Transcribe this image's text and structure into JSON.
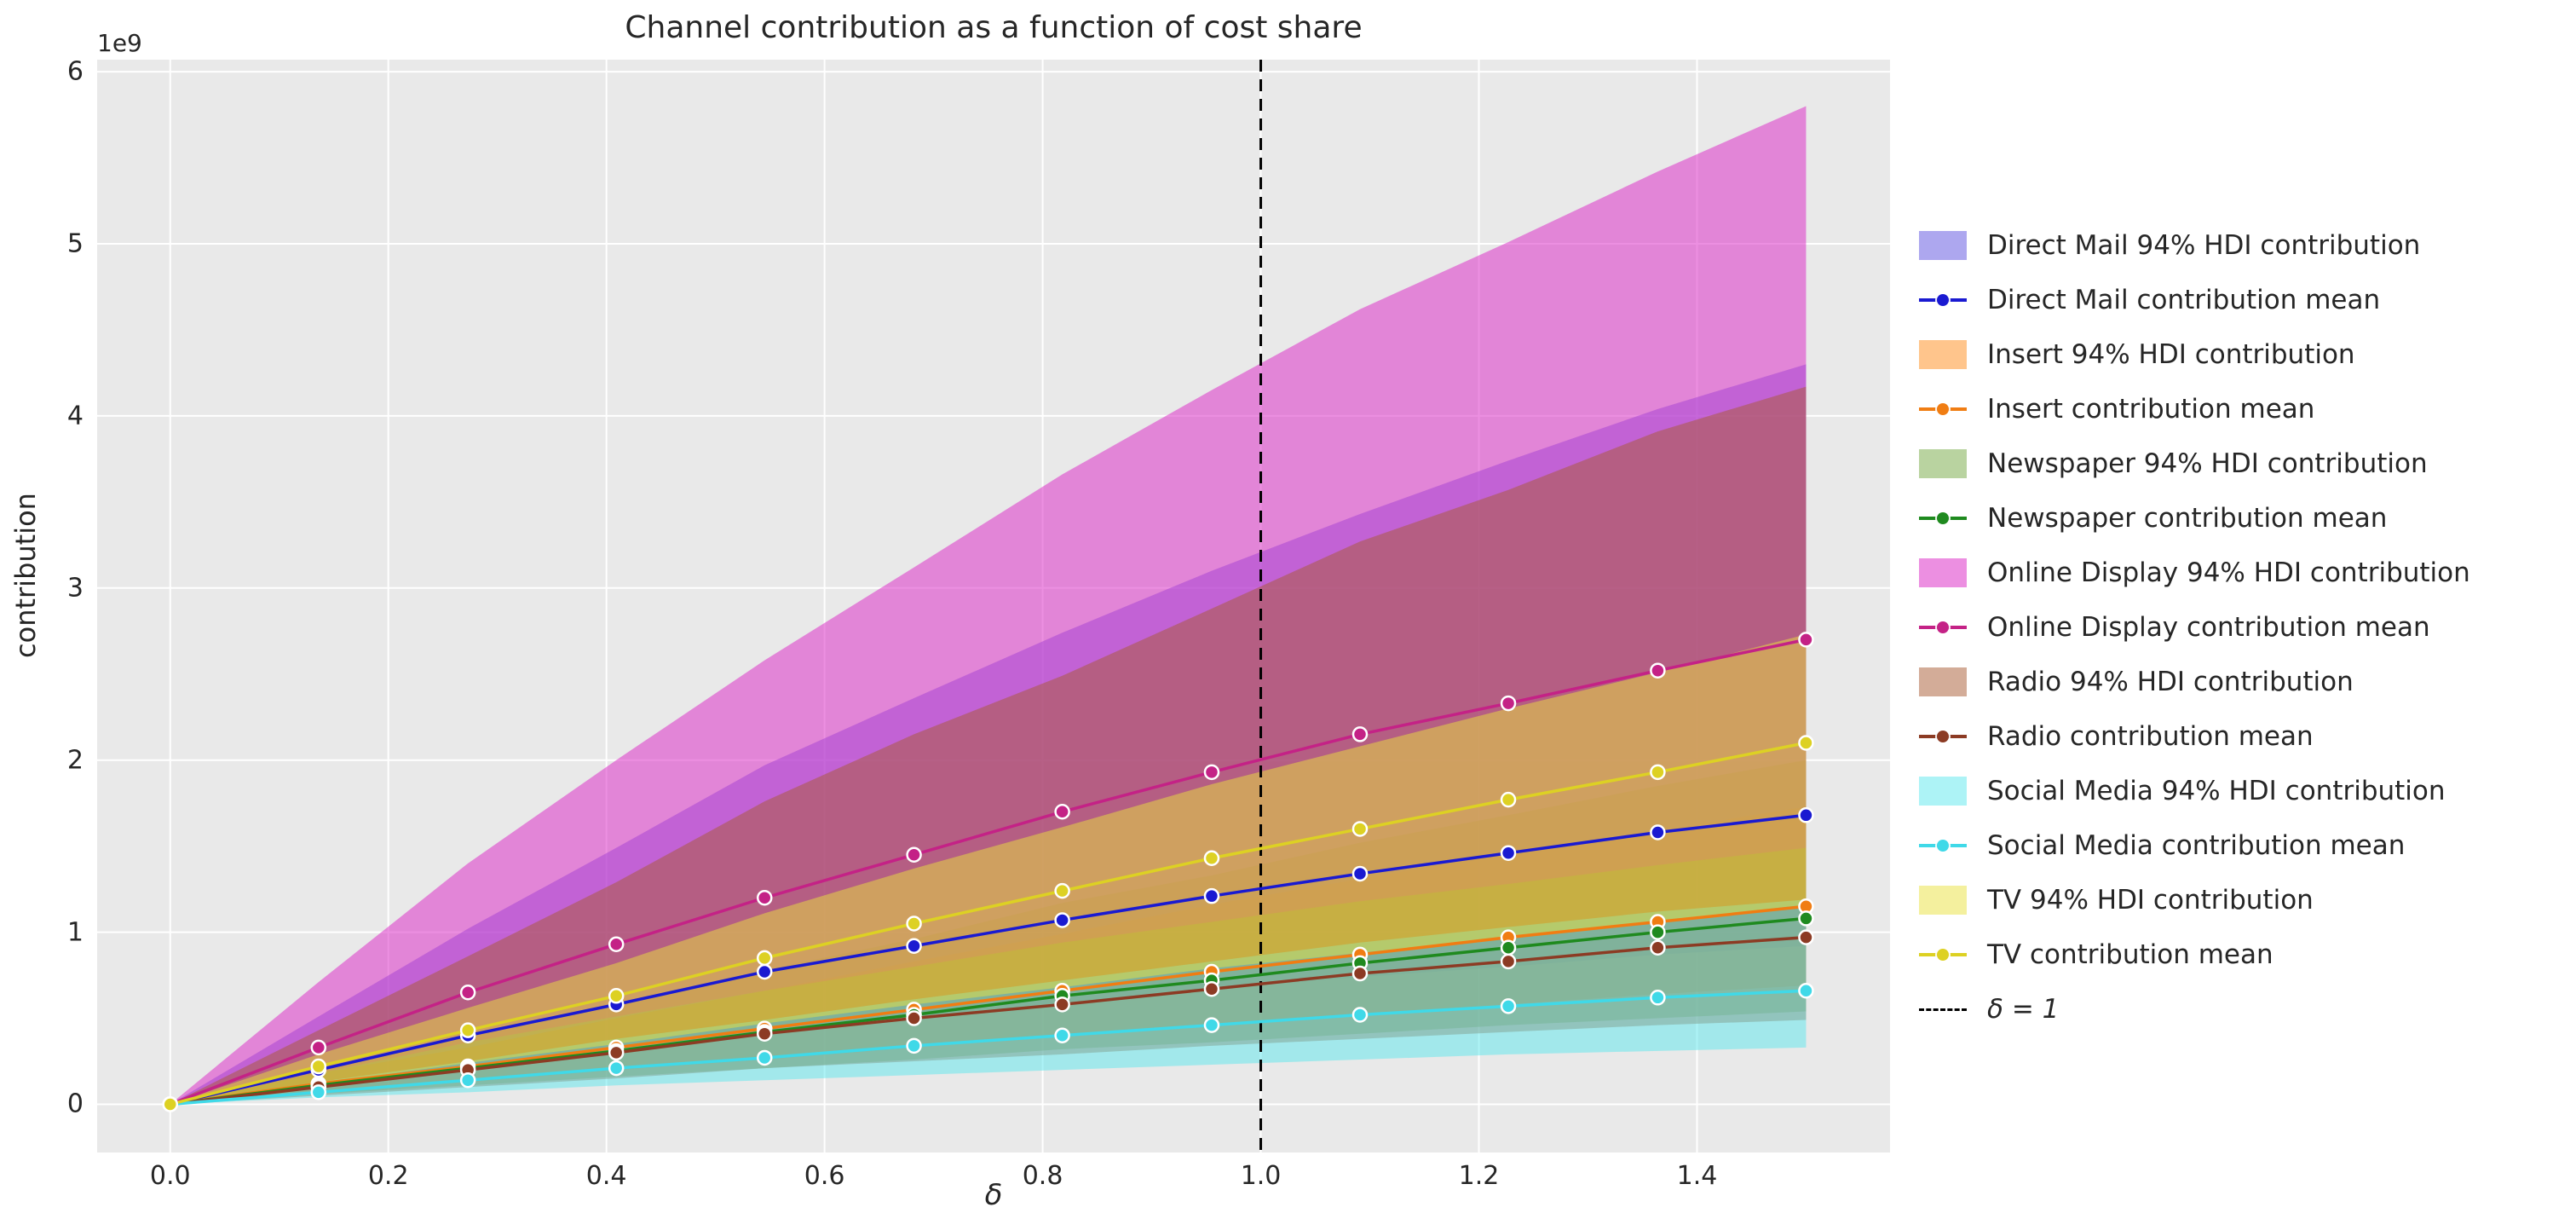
{
  "chart_data": {
    "type": "area",
    "title": "Channel contribution as a function of cost share",
    "xlabel": "δ",
    "ylabel": "contribution",
    "y_offset_text": "1e9",
    "y_unit_multiplier": 1000000000,
    "grid": true,
    "legend_position": "right-outside",
    "plot_bg_color": "#e9e9e9",
    "grid_color": "#ffffff",
    "xlim": [
      -0.067,
      1.577
    ],
    "ylim": [
      -0.28,
      6.07
    ],
    "x_ticks": [
      0.0,
      0.2,
      0.4,
      0.6,
      0.8,
      1.0,
      1.2,
      1.4
    ],
    "x_tick_labels": [
      "0.0",
      "0.2",
      "0.4",
      "0.6",
      "0.8",
      "1.0",
      "1.2",
      "1.4"
    ],
    "y_ticks": [
      0,
      1,
      2,
      3,
      4,
      5,
      6
    ],
    "y_tick_labels": [
      "0",
      "1",
      "2",
      "3",
      "4",
      "5",
      "6"
    ],
    "x": [
      0.0,
      0.136,
      0.273,
      0.409,
      0.545,
      0.682,
      0.818,
      0.955,
      1.091,
      1.227,
      1.364,
      1.5
    ],
    "series": [
      {
        "name": "Direct Mail",
        "line_color": "#1a1ad1",
        "band_color": "#5b4fe0",
        "band_alpha": 0.5,
        "mean": [
          0,
          0.2,
          0.4,
          0.58,
          0.77,
          0.92,
          1.07,
          1.21,
          1.34,
          1.46,
          1.58,
          1.68
        ],
        "hdi_lower": [
          0,
          0.11,
          0.22,
          0.32,
          0.42,
          0.51,
          0.59,
          0.67,
          0.74,
          0.8,
          0.87,
          0.92
        ],
        "hdi_upper": [
          0,
          0.51,
          1.02,
          1.49,
          1.97,
          2.36,
          2.74,
          3.1,
          3.43,
          3.74,
          4.04,
          4.3
        ]
      },
      {
        "name": "Insert",
        "line_color": "#f07d13",
        "band_color": "#ff8c1a",
        "band_alpha": 0.5,
        "mean": [
          0,
          0.12,
          0.22,
          0.33,
          0.44,
          0.55,
          0.66,
          0.77,
          0.87,
          0.97,
          1.06,
          1.15
        ],
        "hdi_lower": [
          0,
          0.07,
          0.13,
          0.2,
          0.26,
          0.33,
          0.4,
          0.46,
          0.52,
          0.58,
          0.64,
          0.69
        ],
        "hdi_upper": [
          0,
          0.18,
          0.33,
          0.5,
          0.66,
          0.83,
          0.99,
          1.16,
          1.31,
          1.46,
          1.59,
          1.73
        ]
      },
      {
        "name": "Newspaper",
        "line_color": "#1f8a1f",
        "band_color": "#74a842",
        "band_alpha": 0.5,
        "mean": [
          0,
          0.11,
          0.21,
          0.31,
          0.42,
          0.52,
          0.63,
          0.72,
          0.82,
          0.91,
          1.0,
          1.08
        ],
        "hdi_lower": [
          0,
          0.06,
          0.11,
          0.16,
          0.21,
          0.26,
          0.32,
          0.36,
          0.41,
          0.46,
          0.5,
          0.54
        ],
        "hdi_upper": [
          0,
          0.2,
          0.39,
          0.57,
          0.78,
          0.96,
          1.17,
          1.33,
          1.52,
          1.68,
          1.85,
          2.0
        ]
      },
      {
        "name": "Online Display",
        "line_color": "#c42286",
        "band_color": "#dd33c8",
        "band_alpha": 0.55,
        "mean": [
          0,
          0.33,
          0.65,
          0.93,
          1.2,
          1.45,
          1.7,
          1.93,
          2.15,
          2.33,
          2.52,
          2.7
        ],
        "hdi_lower": [
          0,
          0.18,
          0.36,
          0.51,
          0.66,
          0.8,
          0.94,
          1.06,
          1.18,
          1.28,
          1.39,
          1.49
        ],
        "hdi_upper": [
          0,
          0.71,
          1.4,
          2.0,
          2.58,
          3.12,
          3.66,
          4.15,
          4.62,
          5.01,
          5.42,
          5.8
        ]
      },
      {
        "name": "Radio",
        "line_color": "#8c3b24",
        "band_color": "#a85a32",
        "band_alpha": 0.5,
        "mean": [
          0,
          0.1,
          0.2,
          0.3,
          0.41,
          0.5,
          0.58,
          0.67,
          0.76,
          0.83,
          0.91,
          0.97
        ],
        "hdi_lower": [
          0,
          0.05,
          0.1,
          0.15,
          0.21,
          0.25,
          0.29,
          0.34,
          0.38,
          0.42,
          0.46,
          0.49
        ],
        "hdi_upper": [
          0,
          0.43,
          0.86,
          1.29,
          1.76,
          2.15,
          2.49,
          2.88,
          3.27,
          3.57,
          3.91,
          4.17
        ]
      },
      {
        "name": "Social Media",
        "line_color": "#40d9e8",
        "band_color": "#5ce8ee",
        "band_alpha": 0.5,
        "mean": [
          0,
          0.07,
          0.14,
          0.21,
          0.27,
          0.34,
          0.4,
          0.46,
          0.52,
          0.57,
          0.62,
          0.66
        ],
        "hdi_lower": [
          0,
          0.04,
          0.07,
          0.11,
          0.14,
          0.17,
          0.2,
          0.23,
          0.26,
          0.29,
          0.31,
          0.33
        ],
        "hdi_upper": [
          0,
          0.13,
          0.25,
          0.38,
          0.49,
          0.61,
          0.72,
          0.83,
          0.94,
          1.03,
          1.12,
          1.19
        ]
      },
      {
        "name": "TV",
        "line_color": "#ddd123",
        "band_color": "#e9e13e",
        "band_alpha": 0.5,
        "mean": [
          0,
          0.22,
          0.43,
          0.63,
          0.85,
          1.05,
          1.24,
          1.43,
          1.6,
          1.77,
          1.93,
          2.1
        ],
        "hdi_lower": [
          0,
          0.12,
          0.24,
          0.35,
          0.47,
          0.58,
          0.68,
          0.79,
          0.88,
          0.97,
          1.06,
          1.16
        ],
        "hdi_upper": [
          0,
          0.29,
          0.56,
          0.82,
          1.11,
          1.37,
          1.61,
          1.86,
          2.08,
          2.3,
          2.51,
          2.73
        ]
      }
    ],
    "reference_line": {
      "label": "δ = 1",
      "x": 1.0,
      "style": "dashed",
      "color": "#000000"
    },
    "legend": [
      {
        "label": "Direct Mail 94% HDI contribution",
        "type": "patch",
        "color": "#5b4fe0",
        "alpha": 0.5
      },
      {
        "label": "Direct Mail contribution mean",
        "type": "line",
        "color": "#1a1ad1"
      },
      {
        "label": "Insert 94% HDI contribution",
        "type": "patch",
        "color": "#ff8c1a",
        "alpha": 0.5
      },
      {
        "label": "Insert contribution mean",
        "type": "line",
        "color": "#f07d13"
      },
      {
        "label": "Newspaper 94% HDI contribution",
        "type": "patch",
        "color": "#74a842",
        "alpha": 0.5
      },
      {
        "label": "Newspaper contribution mean",
        "type": "line",
        "color": "#1f8a1f"
      },
      {
        "label": "Online Display 94% HDI contribution",
        "type": "patch",
        "color": "#dd33c8",
        "alpha": 0.55
      },
      {
        "label": "Online Display contribution mean",
        "type": "line",
        "color": "#c42286"
      },
      {
        "label": "Radio 94% HDI contribution",
        "type": "patch",
        "color": "#a85a32",
        "alpha": 0.5
      },
      {
        "label": "Radio contribution mean",
        "type": "line",
        "color": "#8c3b24"
      },
      {
        "label": "Social Media 94% HDI contribution",
        "type": "patch",
        "color": "#5ce8ee",
        "alpha": 0.5
      },
      {
        "label": "Social Media contribution mean",
        "type": "line",
        "color": "#40d9e8"
      },
      {
        "label": "TV 94% HDI contribution",
        "type": "patch",
        "color": "#e9e13e",
        "alpha": 0.5
      },
      {
        "label": "TV contribution mean",
        "type": "line",
        "color": "#ddd123"
      },
      {
        "label": "δ = 1",
        "type": "dashed",
        "color": "#000000",
        "italic": true
      }
    ]
  }
}
